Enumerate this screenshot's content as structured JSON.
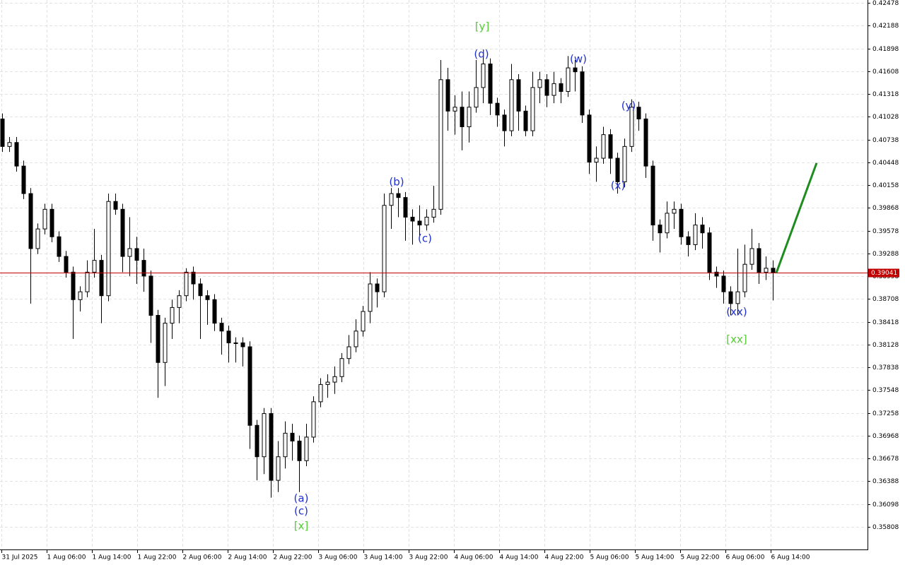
{
  "chart_data": {
    "type": "candlestick",
    "ylim": [
      0.3552,
      0.42514
    ],
    "yticks": [
      0.42478,
      0.42188,
      0.41898,
      0.41608,
      0.41318,
      0.41028,
      0.40738,
      0.40448,
      0.40158,
      0.39868,
      0.39578,
      0.39288,
      0.38998,
      0.38708,
      0.38418,
      0.38128,
      0.37838,
      0.37548,
      0.37258,
      0.36968,
      0.36678,
      0.36388,
      0.36098,
      0.35808
    ],
    "grid": true,
    "x_labels": [
      "31 Jul 2025",
      "1 Aug 06:00",
      "1 Aug 14:00",
      "1 Aug 22:00",
      "2 Aug 06:00",
      "2 Aug 14:00",
      "2 Aug 22:00",
      "3 Aug 06:00",
      "3 Aug 14:00",
      "3 Aug 22:00",
      "4 Aug 06:00",
      "4 Aug 14:00",
      "4 Aug 22:00",
      "5 Aug 06:00",
      "5 Aug 14:00",
      "5 Aug 22:00",
      "6 Aug 06:00",
      "6 Aug 14:00"
    ],
    "up_color": "#ffffff",
    "down_color": "#000000",
    "open": [
      0.41,
      0.4065,
      0.407,
      0.404,
      0.4005,
      0.3935,
      0.396,
      0.3985,
      0.395,
      0.3925,
      0.3905,
      0.387,
      0.388,
      0.3905,
      0.392,
      0.3875,
      0.3995,
      0.3985,
      0.3925,
      0.3935,
      0.392,
      0.39,
      0.385,
      0.379,
      0.384,
      0.386,
      0.3875,
      0.3905,
      0.389,
      0.3875,
      0.387,
      0.384,
      0.383,
      0.3815,
      0.3815,
      0.381,
      0.371,
      0.367,
      0.3725,
      0.364,
      0.367,
      0.37,
      0.369,
      0.3665,
      0.3695,
      0.374,
      0.3762,
      0.3765,
      0.3772,
      0.3795,
      0.381,
      0.383,
      0.3855,
      0.389,
      0.388,
      0.399,
      0.4005,
      0.4,
      0.3975,
      0.397,
      0.3965,
      0.3975,
      0.3985,
      0.415,
      0.411,
      0.4115,
      0.409,
      0.4115,
      0.414,
      0.417,
      0.412,
      0.4105,
      0.4085,
      0.415,
      0.411,
      0.4085,
      0.414,
      0.415,
      0.413,
      0.4145,
      0.4135,
      0.4165,
      0.416,
      0.4105,
      0.4045,
      0.405,
      0.408,
      0.405,
      0.402,
      0.4065,
      0.4115,
      0.41,
      0.404,
      0.3965,
      0.3955,
      0.398,
      0.3985,
      0.395,
      0.394,
      0.3965,
      0.3955,
      0.3905,
      0.39,
      0.388,
      0.3865,
      0.388,
      0.3915,
      0.3935,
      0.3905,
      0.391
    ],
    "high": [
      0.4107,
      0.4077,
      0.4077,
      0.4047,
      0.4012,
      0.3967,
      0.3992,
      0.3992,
      0.3957,
      0.3932,
      0.3912,
      0.3887,
      0.392,
      0.396,
      0.3927,
      0.4005,
      0.4005,
      0.3992,
      0.3975,
      0.395,
      0.3935,
      0.3907,
      0.3857,
      0.3847,
      0.387,
      0.3882,
      0.391,
      0.3912,
      0.3897,
      0.3882,
      0.3877,
      0.3847,
      0.3837,
      0.3822,
      0.3822,
      0.3817,
      0.3717,
      0.3732,
      0.3732,
      0.369,
      0.3715,
      0.3712,
      0.3697,
      0.3712,
      0.3747,
      0.377,
      0.3775,
      0.3785,
      0.3802,
      0.3825,
      0.3845,
      0.3862,
      0.3905,
      0.3897,
      0.4005,
      0.4012,
      0.4012,
      0.4007,
      0.3985,
      0.399,
      0.3985,
      0.4015,
      0.4175,
      0.4165,
      0.413,
      0.4135,
      0.4135,
      0.4175,
      0.4185,
      0.4177,
      0.4127,
      0.4112,
      0.417,
      0.4157,
      0.4117,
      0.416,
      0.416,
      0.4157,
      0.416,
      0.4152,
      0.418,
      0.4175,
      0.4167,
      0.4112,
      0.4065,
      0.409,
      0.4087,
      0.4057,
      0.4075,
      0.4125,
      0.4122,
      0.4107,
      0.4047,
      0.3972,
      0.3995,
      0.3995,
      0.3992,
      0.3957,
      0.398,
      0.3975,
      0.3962,
      0.3912,
      0.3907,
      0.3887,
      0.3935,
      0.394,
      0.396,
      0.3942,
      0.3925,
      0.392
    ],
    "low": [
      0.4058,
      0.4058,
      0.4033,
      0.3998,
      0.3865,
      0.3928,
      0.3953,
      0.3943,
      0.3918,
      0.3898,
      0.382,
      0.3855,
      0.3873,
      0.3898,
      0.384,
      0.3868,
      0.3978,
      0.3905,
      0.39,
      0.389,
      0.388,
      0.3815,
      0.3745,
      0.376,
      0.382,
      0.384,
      0.3868,
      0.387,
      0.382,
      0.3838,
      0.383,
      0.38,
      0.379,
      0.379,
      0.3785,
      0.368,
      0.364,
      0.3648,
      0.3618,
      0.3625,
      0.3655,
      0.3665,
      0.3625,
      0.3658,
      0.3688,
      0.3733,
      0.3745,
      0.375,
      0.3765,
      0.3788,
      0.3803,
      0.3823,
      0.384,
      0.386,
      0.3873,
      0.396,
      0.3975,
      0.3945,
      0.394,
      0.395,
      0.3958,
      0.3968,
      0.3978,
      0.4085,
      0.408,
      0.406,
      0.407,
      0.4108,
      0.412,
      0.4105,
      0.409,
      0.4065,
      0.4078,
      0.4085,
      0.4078,
      0.4078,
      0.412,
      0.4115,
      0.412,
      0.412,
      0.4128,
      0.4135,
      0.4095,
      0.403,
      0.402,
      0.4043,
      0.403,
      0.4005,
      0.4013,
      0.4058,
      0.4085,
      0.4025,
      0.3945,
      0.393,
      0.3948,
      0.396,
      0.394,
      0.3925,
      0.3933,
      0.3935,
      0.3895,
      0.3885,
      0.3865,
      0.385,
      0.385,
      0.3873,
      0.3908,
      0.389,
      0.3895,
      0.3869
    ],
    "close": [
      0.4065,
      0.407,
      0.404,
      0.4005,
      0.3935,
      0.396,
      0.3985,
      0.395,
      0.3925,
      0.3905,
      0.387,
      0.388,
      0.3905,
      0.392,
      0.3875,
      0.3995,
      0.3985,
      0.3925,
      0.3935,
      0.392,
      0.39,
      0.385,
      0.379,
      0.384,
      0.386,
      0.3875,
      0.3905,
      0.389,
      0.3875,
      0.387,
      0.384,
      0.383,
      0.3815,
      0.3815,
      0.381,
      0.371,
      0.367,
      0.3725,
      0.364,
      0.367,
      0.37,
      0.369,
      0.3665,
      0.3695,
      0.374,
      0.3762,
      0.3765,
      0.3772,
      0.3795,
      0.381,
      0.383,
      0.3855,
      0.389,
      0.388,
      0.399,
      0.4005,
      0.4,
      0.3975,
      0.397,
      0.3965,
      0.3975,
      0.3985,
      0.415,
      0.411,
      0.4115,
      0.409,
      0.4115,
      0.414,
      0.417,
      0.412,
      0.4105,
      0.4085,
      0.415,
      0.411,
      0.4085,
      0.414,
      0.415,
      0.413,
      0.4145,
      0.4135,
      0.4165,
      0.416,
      0.4105,
      0.4045,
      0.405,
      0.408,
      0.405,
      0.402,
      0.4065,
      0.4115,
      0.41,
      0.404,
      0.3965,
      0.3955,
      0.398,
      0.3985,
      0.395,
      0.394,
      0.3965,
      0.3955,
      0.3905,
      0.39,
      0.388,
      0.3865,
      0.388,
      0.3915,
      0.3935,
      0.3905,
      0.391,
      0.39041
    ],
    "current_price": 0.39041,
    "current_price_color": "#c00000",
    "forecast": {
      "from": 0.39041,
      "to": 0.4044,
      "color": "#1e8c1e"
    },
    "annotations": [
      {
        "text": "[y]",
        "color": "#55cc33"
      },
      {
        "text": "(d)",
        "color": "#1f2fd0"
      },
      {
        "text": "(w)",
        "color": "#1f2fd0"
      },
      {
        "text": "(y)",
        "color": "#1f2fd0"
      },
      {
        "text": "(x)",
        "color": "#1f2fd0"
      },
      {
        "text": "(b)",
        "color": "#1f2fd0"
      },
      {
        "text": "(c)",
        "color": "#1f2fd0"
      },
      {
        "text": "(a)",
        "color": "#1f2fd0"
      },
      {
        "text": "(c)",
        "color": "#1f2fd0"
      },
      {
        "text": "[x]",
        "color": "#55cc33"
      },
      {
        "text": "(xx)",
        "color": "#1f2fd0"
      },
      {
        "text": "[xx]",
        "color": "#55cc33"
      }
    ]
  }
}
